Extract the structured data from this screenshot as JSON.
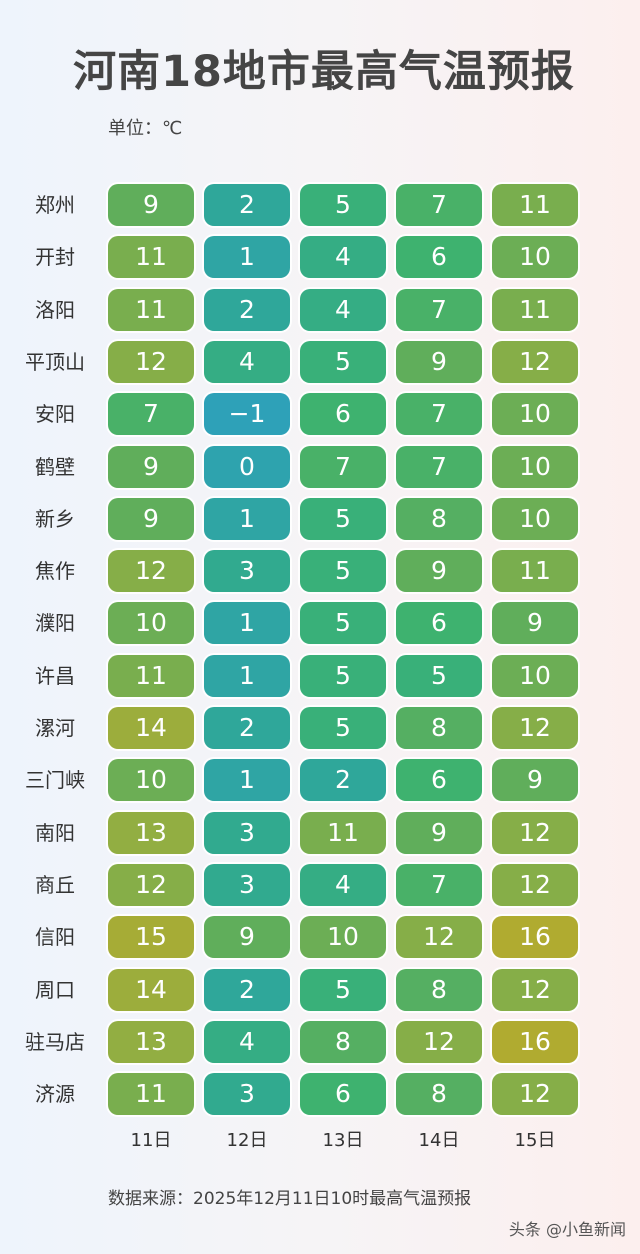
{
  "header": {
    "title": "河南18地市最高气温预报",
    "unit": "单位：℃"
  },
  "footer": {
    "source": "数据来源：2025年12月11日10时最高气温预报",
    "watermark": "头条 @小鱼新闻"
  },
  "chart_data": {
    "type": "heatmap",
    "title": "河南18地市最高气温预报",
    "unit": "℃",
    "columns": [
      "11日",
      "12日",
      "13日",
      "14日",
      "15日"
    ],
    "rows": [
      {
        "city": "郑州",
        "values": [
          9,
          2,
          5,
          7,
          11
        ]
      },
      {
        "city": "开封",
        "values": [
          11,
          1,
          4,
          6,
          10
        ]
      },
      {
        "city": "洛阳",
        "values": [
          11,
          2,
          4,
          7,
          11
        ]
      },
      {
        "city": "平顶山",
        "values": [
          12,
          4,
          5,
          9,
          12
        ]
      },
      {
        "city": "安阳",
        "values": [
          7,
          -1,
          6,
          7,
          10
        ]
      },
      {
        "city": "鹤壁",
        "values": [
          9,
          0,
          7,
          7,
          10
        ]
      },
      {
        "city": "新乡",
        "values": [
          9,
          1,
          5,
          8,
          10
        ]
      },
      {
        "city": "焦作",
        "values": [
          12,
          3,
          5,
          9,
          11
        ]
      },
      {
        "city": "濮阳",
        "values": [
          10,
          1,
          5,
          6,
          9
        ]
      },
      {
        "city": "许昌",
        "values": [
          11,
          1,
          5,
          5,
          10
        ]
      },
      {
        "city": "漯河",
        "values": [
          14,
          2,
          5,
          8,
          12
        ]
      },
      {
        "city": "三门峡",
        "values": [
          10,
          1,
          2,
          6,
          9
        ]
      },
      {
        "city": "南阳",
        "values": [
          13,
          3,
          11,
          9,
          12
        ]
      },
      {
        "city": "商丘",
        "values": [
          12,
          3,
          4,
          7,
          12
        ]
      },
      {
        "city": "信阳",
        "values": [
          15,
          9,
          10,
          12,
          16
        ]
      },
      {
        "city": "周口",
        "values": [
          14,
          2,
          5,
          8,
          12
        ]
      },
      {
        "city": "驻马店",
        "values": [
          13,
          4,
          8,
          12,
          16
        ]
      },
      {
        "city": "济源",
        "values": [
          11,
          3,
          6,
          8,
          12
        ]
      }
    ],
    "color_scale": {
      "min": -1,
      "max": 16,
      "stops": [
        "#2ea1b8",
        "#2fa896",
        "#3cb270",
        "#62ae5a",
        "#8eae44",
        "#b0ab30"
      ]
    }
  }
}
